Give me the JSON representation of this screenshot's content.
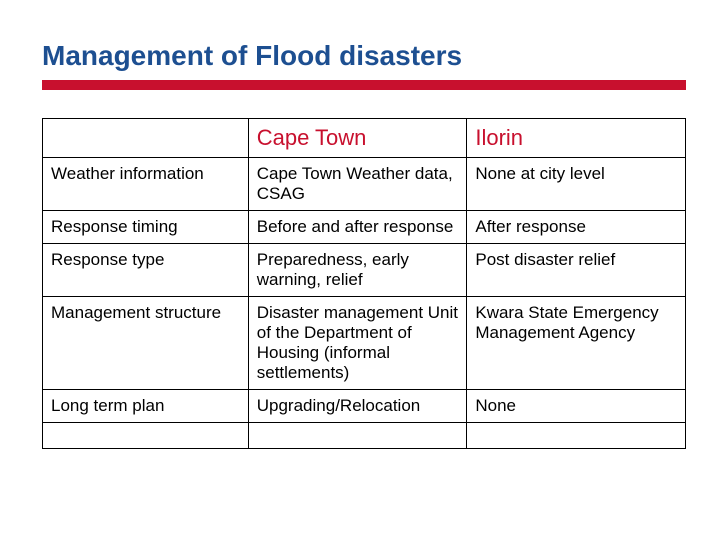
{
  "title": "Management of Flood disasters",
  "title_color": "#1d4f91",
  "bar_color": "#c8102e",
  "header_color": "#c8102e",
  "text_color": "#000000",
  "table": {
    "columns": [
      "",
      "Cape Town",
      "Ilorin"
    ],
    "rows": [
      [
        "Weather information",
        "Cape Town Weather data,\nCSAG",
        "None at city level"
      ],
      [
        "Response timing",
        "Before and after response",
        "After response"
      ],
      [
        "Response type",
        "Preparedness, early warning, relief",
        "Post disaster relief"
      ],
      [
        "Management structure",
        "Disaster management Unit of the Department of Housing (informal settlements)",
        "Kwara State Emergency Management Agency"
      ],
      [
        "Long term plan",
        "Upgrading/Relocation",
        "None"
      ]
    ]
  }
}
